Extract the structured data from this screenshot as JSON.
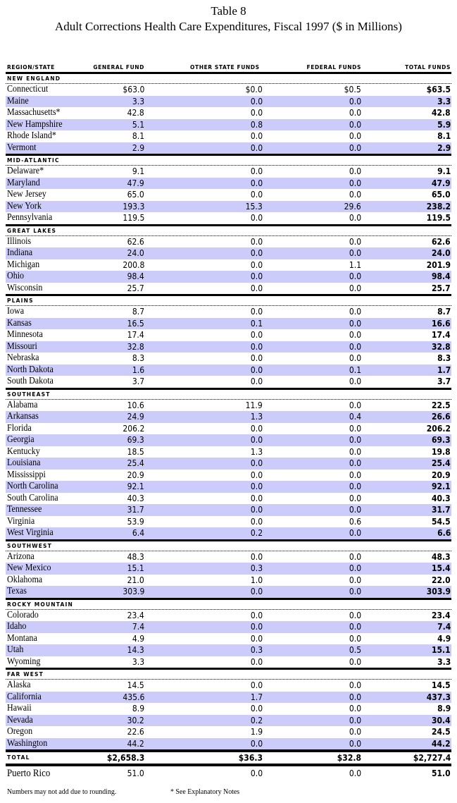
{
  "title": "Table 8",
  "subtitle": "Adult Corrections Health Care Expenditures, Fiscal 1997 ($ in Millions)",
  "columns": [
    "REGION/STATE",
    "GENERAL FUND",
    "OTHER STATE FUNDS",
    "FEDERAL FUNDS",
    "TOTAL FUNDS"
  ],
  "row_highlight_color": "#ccccfa",
  "regions": [
    {
      "name": "NEW ENGLAND",
      "rows": [
        [
          "Connecticut",
          "$63.0",
          "$0.0",
          "$0.5",
          "$63.5"
        ],
        [
          "Maine",
          "3.3",
          "0.0",
          "0.0",
          "3.3"
        ],
        [
          "Massachusetts*",
          "42.8",
          "0.0",
          "0.0",
          "42.8"
        ],
        [
          "New Hampshire",
          "5.1",
          "0.8",
          "0.0",
          "5.9"
        ],
        [
          "Rhode Island*",
          "8.1",
          "0.0",
          "0.0",
          "8.1"
        ],
        [
          "Vermont",
          "2.9",
          "0.0",
          "0.0",
          "2.9"
        ]
      ]
    },
    {
      "name": "MID-ATLANTIC",
      "rows": [
        [
          "Delaware*",
          "9.1",
          "0.0",
          "0.0",
          "9.1"
        ],
        [
          "Maryland",
          "47.9",
          "0.0",
          "0.0",
          "47.9"
        ],
        [
          "New Jersey",
          "65.0",
          "0.0",
          "0.0",
          "65.0"
        ],
        [
          "New York",
          "193.3",
          "15.3",
          "29.6",
          "238.2"
        ],
        [
          "Pennsylvania",
          "119.5",
          "0.0",
          "0.0",
          "119.5"
        ]
      ]
    },
    {
      "name": "GREAT LAKES",
      "rows": [
        [
          "Illinois",
          "62.6",
          "0.0",
          "0.0",
          "62.6"
        ],
        [
          "Indiana",
          "24.0",
          "0.0",
          "0.0",
          "24.0"
        ],
        [
          "Michigan",
          "200.8",
          "0.0",
          "1.1",
          "201.9"
        ],
        [
          "Ohio",
          "98.4",
          "0.0",
          "0.0",
          "98.4"
        ],
        [
          "Wisconsin",
          "25.7",
          "0.0",
          "0.0",
          "25.7"
        ]
      ]
    },
    {
      "name": "PLAINS",
      "rows": [
        [
          "Iowa",
          "8.7",
          "0.0",
          "0.0",
          "8.7"
        ],
        [
          "Kansas",
          "16.5",
          "0.1",
          "0.0",
          "16.6"
        ],
        [
          "Minnesota",
          "17.4",
          "0.0",
          "0.0",
          "17.4"
        ],
        [
          "Missouri",
          "32.8",
          "0.0",
          "0.0",
          "32.8"
        ],
        [
          "Nebraska",
          "8.3",
          "0.0",
          "0.0",
          "8.3"
        ],
        [
          "North Dakota",
          "1.6",
          "0.0",
          "0.1",
          "1.7"
        ],
        [
          "South Dakota",
          "3.7",
          "0.0",
          "0.0",
          "3.7"
        ]
      ]
    },
    {
      "name": "SOUTHEAST",
      "rows": [
        [
          "Alabama",
          "10.6",
          "11.9",
          "0.0",
          "22.5"
        ],
        [
          "Arkansas",
          "24.9",
          "1.3",
          "0.4",
          "26.6"
        ],
        [
          "Florida",
          "206.2",
          "0.0",
          "0.0",
          "206.2"
        ],
        [
          "Georgia",
          "69.3",
          "0.0",
          "0.0",
          "69.3"
        ],
        [
          "Kentucky",
          "18.5",
          "1.3",
          "0.0",
          "19.8"
        ],
        [
          "Louisiana",
          "25.4",
          "0.0",
          "0.0",
          "25.4"
        ],
        [
          "Mississippi",
          "20.9",
          "0.0",
          "0.0",
          "20.9"
        ],
        [
          "North Carolina",
          "92.1",
          "0.0",
          "0.0",
          "92.1"
        ],
        [
          "South Carolina",
          "40.3",
          "0.0",
          "0.0",
          "40.3"
        ],
        [
          "Tennessee",
          "31.7",
          "0.0",
          "0.0",
          "31.7"
        ],
        [
          "Virginia",
          "53.9",
          "0.0",
          "0.6",
          "54.5"
        ],
        [
          "West Virginia",
          "6.4",
          "0.2",
          "0.0",
          "6.6"
        ]
      ]
    },
    {
      "name": "SOUTHWEST",
      "rows": [
        [
          "Arizona",
          "48.3",
          "0.0",
          "0.0",
          "48.3"
        ],
        [
          "New Mexico",
          "15.1",
          "0.3",
          "0.0",
          "15.4"
        ],
        [
          "Oklahoma",
          "21.0",
          "1.0",
          "0.0",
          "22.0"
        ],
        [
          "Texas",
          "303.9",
          "0.0",
          "0.0",
          "303.9"
        ]
      ]
    },
    {
      "name": "ROCKY MOUNTAIN",
      "rows": [
        [
          "Colorado",
          "23.4",
          "0.0",
          "0.0",
          "23.4"
        ],
        [
          "Idaho",
          "7.4",
          "0.0",
          "0.0",
          "7.4"
        ],
        [
          "Montana",
          "4.9",
          "0.0",
          "0.0",
          "4.9"
        ],
        [
          "Utah",
          "14.3",
          "0.3",
          "0.5",
          "15.1"
        ],
        [
          "Wyoming",
          "3.3",
          "0.0",
          "0.0",
          "3.3"
        ]
      ]
    },
    {
      "name": "FAR WEST",
      "rows": [
        [
          "Alaska",
          "14.5",
          "0.0",
          "0.0",
          "14.5"
        ],
        [
          "California",
          "435.6",
          "1.7",
          "0.0",
          "437.3"
        ],
        [
          "Hawaii",
          "8.9",
          "0.0",
          "0.0",
          "8.9"
        ],
        [
          "Nevada",
          "30.2",
          "0.2",
          "0.0",
          "30.4"
        ],
        [
          "Oregon",
          "22.6",
          "1.9",
          "0.0",
          "24.5"
        ],
        [
          "Washington",
          "44.2",
          "0.0",
          "0.0",
          "44.2"
        ]
      ]
    }
  ],
  "total": [
    "TOTAL",
    "$2,658.3",
    "$36.3",
    "$32.8",
    "$2,727.4"
  ],
  "puerto_rico": [
    "Puerto Rico",
    "51.0",
    "0.0",
    "0.0",
    "51.0"
  ],
  "notes": [
    "Numbers may not add due to rounding.",
    "* See Explanatory Notes"
  ]
}
